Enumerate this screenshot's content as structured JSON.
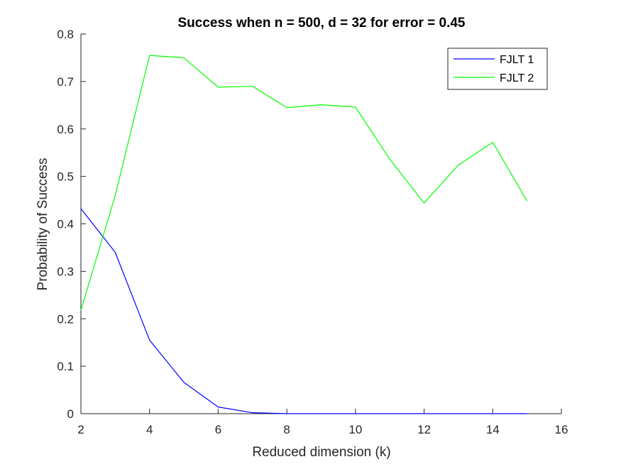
{
  "chart_data": {
    "type": "line",
    "title": "Success when n = 500, d = 32 for error = 0.45",
    "xlabel": "Reduced dimension (k)",
    "ylabel": "Probability of Success",
    "xlim": [
      2,
      16
    ],
    "ylim": [
      0,
      0.8
    ],
    "xticks": [
      2,
      4,
      6,
      8,
      10,
      12,
      14,
      16
    ],
    "yticks": [
      0,
      0.1,
      0.2,
      0.3,
      0.4,
      0.5,
      0.6,
      0.7,
      0.8
    ],
    "xtick_labels": [
      "2",
      "4",
      "6",
      "8",
      "10",
      "12",
      "14",
      "16"
    ],
    "ytick_labels": [
      "0",
      "0.1",
      "0.2",
      "0.3",
      "0.4",
      "0.5",
      "0.6",
      "0.7",
      "0.8"
    ],
    "grid": false,
    "legend_position": "top-right",
    "x": [
      2,
      3,
      4,
      5,
      6,
      7,
      8,
      9,
      10,
      11,
      12,
      13,
      14,
      15
    ],
    "series": [
      {
        "name": "FJLT 1",
        "color": "#0000ff",
        "values": [
          0.432,
          0.34,
          0.155,
          0.066,
          0.014,
          0.002,
          0,
          0,
          0,
          0,
          0,
          0,
          0,
          0
        ]
      },
      {
        "name": "FJLT 2",
        "color": "#00ff00",
        "values": [
          0.218,
          0.46,
          0.755,
          0.75,
          0.688,
          0.69,
          0.645,
          0.651,
          0.646,
          0.536,
          0.444,
          0.524,
          0.572,
          0.448
        ]
      }
    ]
  }
}
